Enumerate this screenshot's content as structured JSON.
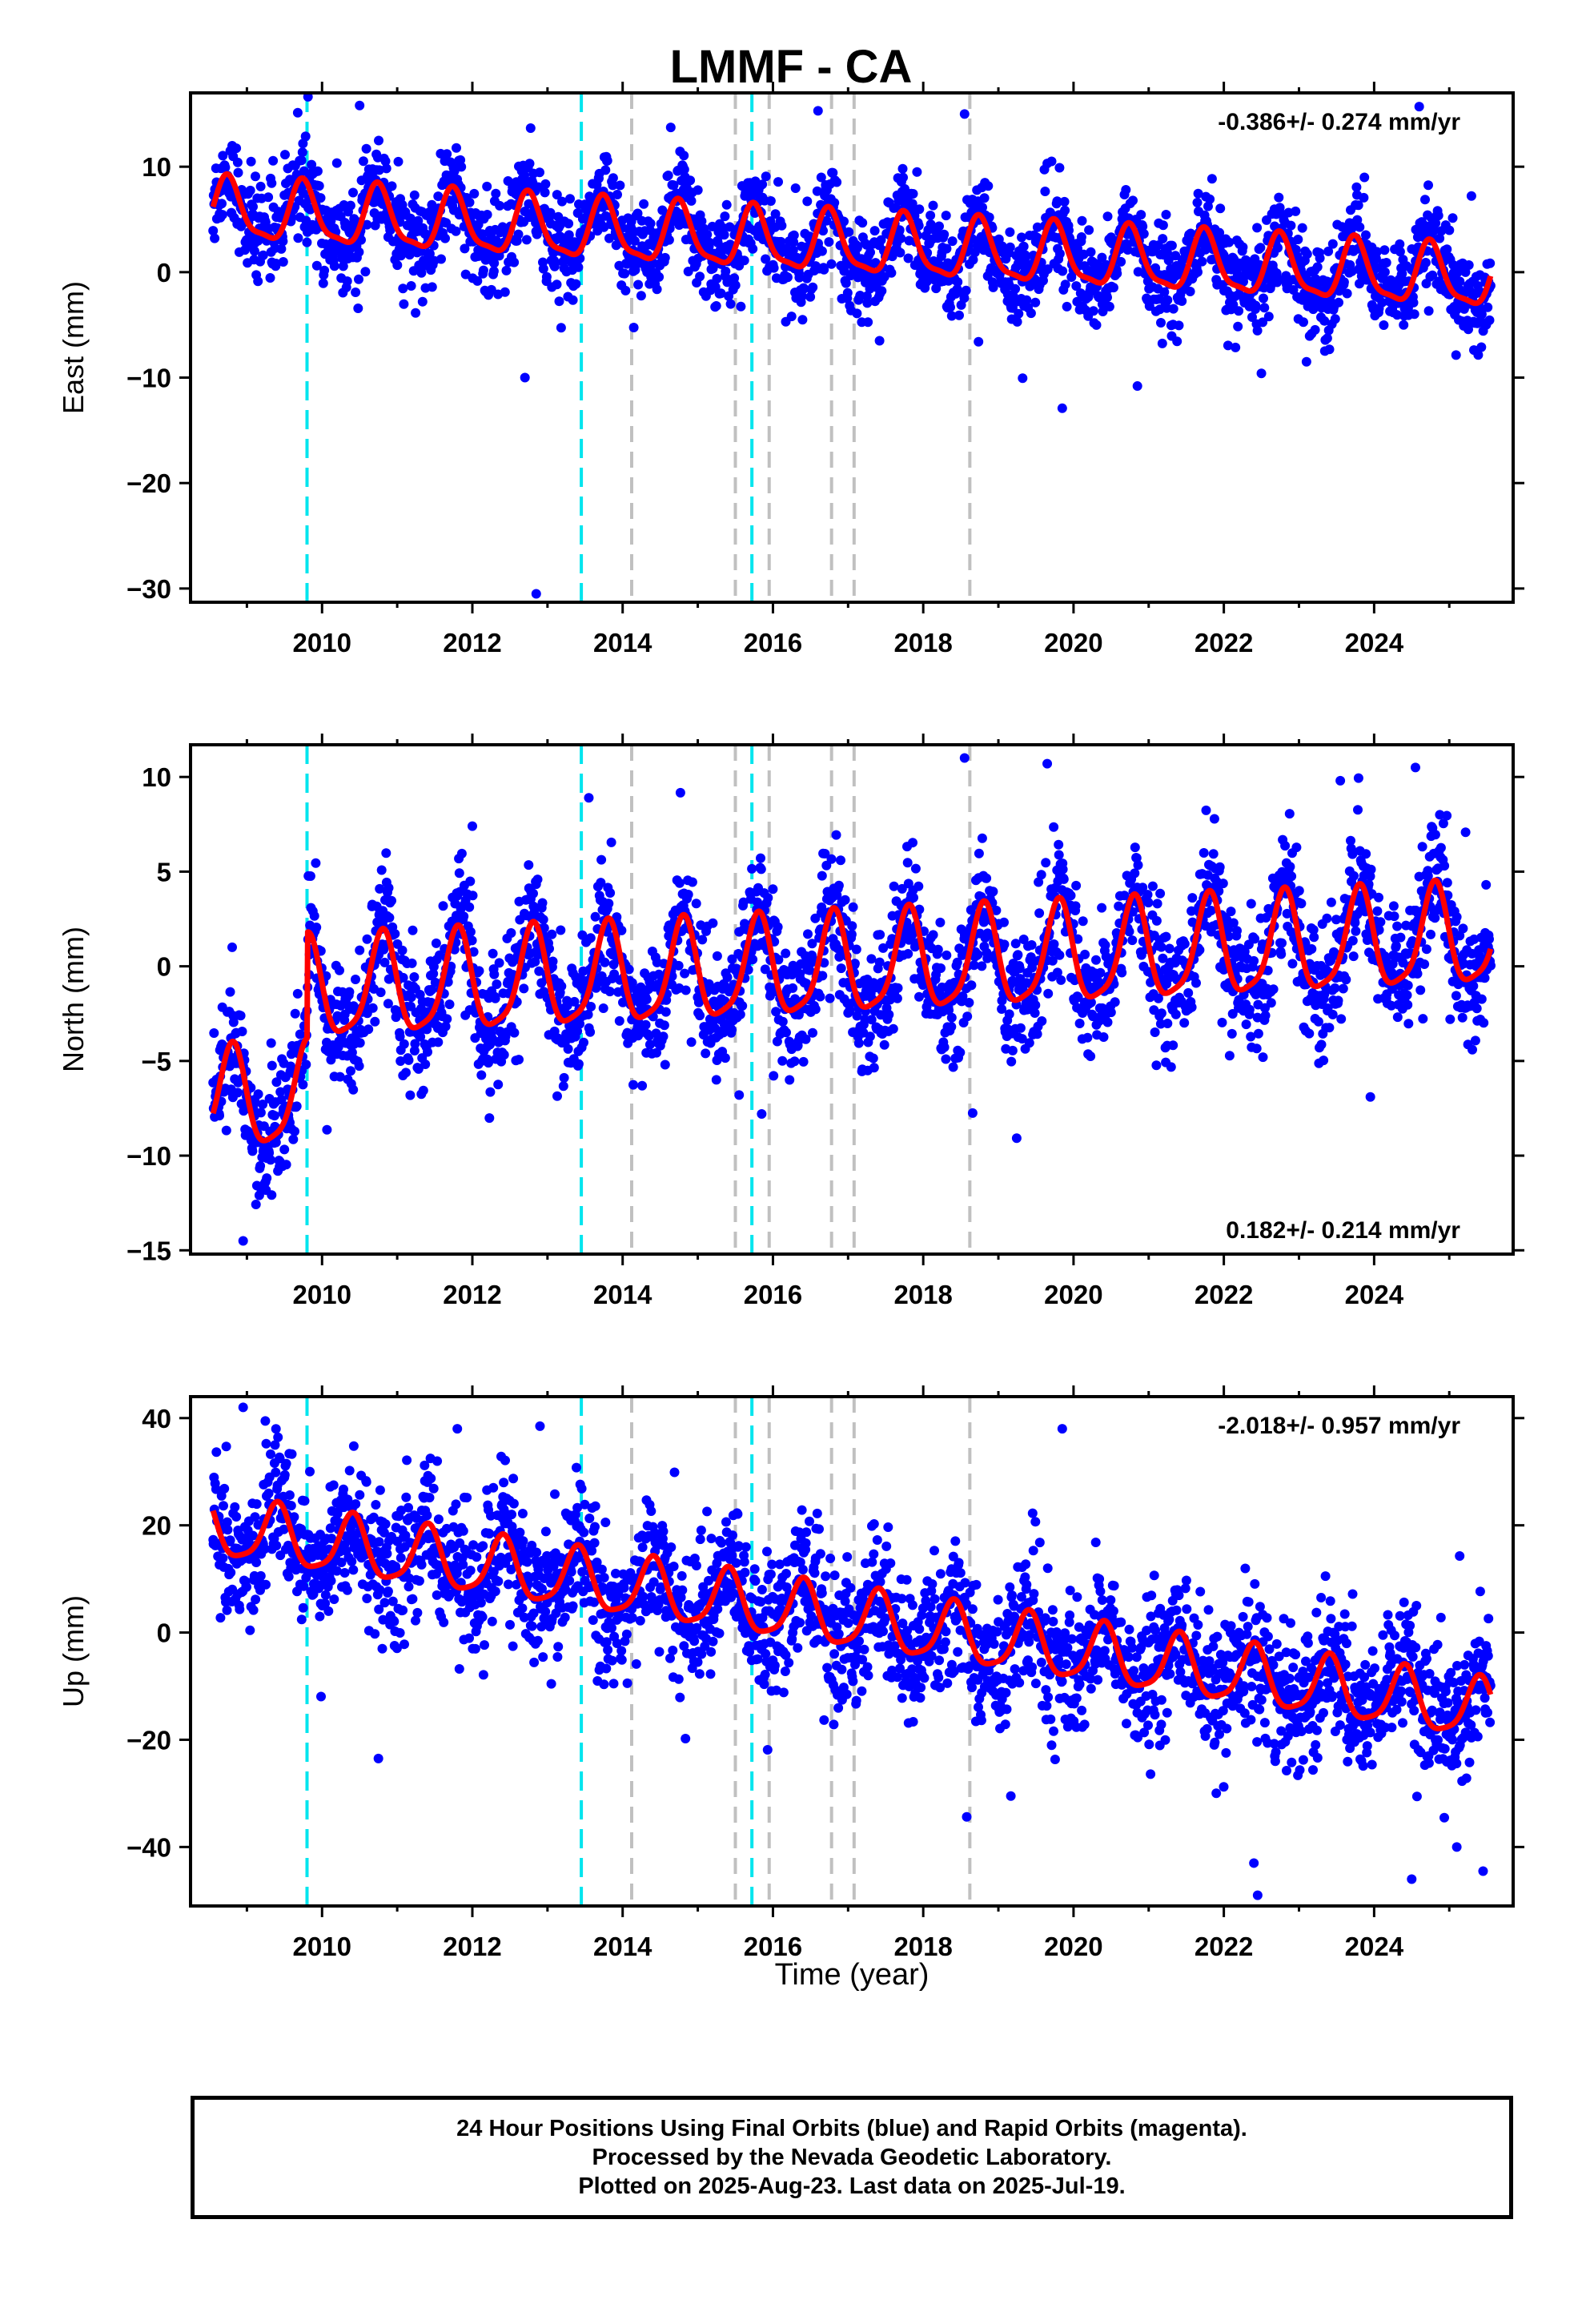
{
  "title": "LMMF - CA",
  "xlabel": "Time (year)",
  "footer": [
    "24 Hour Positions Using Final Orbits (blue) and Rapid Orbits (magenta).",
    "Processed by the Nevada Geodetic Laboratory.",
    "Plotted on 2025-Aug-23. Last data on 2025-Jul-19."
  ],
  "colors": {
    "final_orbits": "#0000ff",
    "model_fit": "#ff0000",
    "equipment_change": "#00e5ee",
    "other_event": "#c0c0c0"
  },
  "chart_data": [
    {
      "type": "scatter",
      "component": "east",
      "ylabel": "East (mm)",
      "rate_label": "-0.386+/- 0.274 mm/yr",
      "legend": "top-right",
      "xlim": [
        2008.25,
        2025.85
      ],
      "ylim": [
        -31.3,
        17
      ],
      "yticks": [
        10,
        0,
        -10,
        -20,
        -30
      ],
      "xticks": [
        2010,
        2012,
        2014,
        2016,
        2018,
        2020,
        2022,
        2024
      ],
      "fit": {
        "offset": 5.8,
        "rate": -0.386,
        "annual_amp": 2.8,
        "annual_phase": 0.5,
        "semiannual_amp": 0.8,
        "semiannual_phase": 0.1,
        "noise": 2.2
      },
      "steps": [],
      "outliers": [
        [
          2012.85,
          -30.5
        ],
        [
          2010.5,
          15.8
        ],
        [
          2024.6,
          15.7
        ],
        [
          2016.6,
          15.3
        ],
        [
          2018.55,
          15.0
        ],
        [
          2019.85,
          -12.9
        ],
        [
          2020.85,
          -10.8
        ],
        [
          2012.7,
          -10.0
        ],
        [
          2023.1,
          -8.5
        ],
        [
          2022.5,
          -9.6
        ]
      ]
    },
    {
      "type": "scatter",
      "component": "north",
      "ylabel": "North (mm)",
      "rate_label": "0.182+/- 0.214 mm/yr",
      "legend": "bottom-right",
      "xlim": [
        2008.25,
        2025.85
      ],
      "ylim": [
        -15.2,
        11.7
      ],
      "yticks": [
        10,
        5,
        0,
        -5,
        -10,
        -15
      ],
      "xticks": [
        2010,
        2012,
        2014,
        2016,
        2018,
        2020,
        2022,
        2024
      ],
      "fit": {
        "offset": -1.6,
        "rate": 0.182,
        "annual_amp": 2.6,
        "annual_phase": 0.55,
        "semiannual_amp": 0.6,
        "semiannual_phase": 0.2,
        "noise": 1.7
      },
      "steps": [
        [
          2008.5,
          2009.8,
          -5.6
        ]
      ],
      "outliers": [
        [
          2008.95,
          -14.5
        ],
        [
          2018.55,
          11.0
        ],
        [
          2019.65,
          10.7
        ],
        [
          2024.55,
          10.5
        ],
        [
          2023.55,
          9.8
        ],
        [
          2013.55,
          8.9
        ],
        [
          2015.85,
          -7.8
        ],
        [
          2023.95,
          -6.9
        ],
        [
          2015.55,
          -6.8
        ],
        [
          2012.0,
          7.4
        ]
      ]
    },
    {
      "type": "scatter",
      "component": "up",
      "ylabel": "Up (mm)",
      "rate_label": "-2.018+/- 0.957 mm/yr",
      "legend": "top-right",
      "xlim": [
        2008.25,
        2025.85
      ],
      "ylim": [
        -51,
        44
      ],
      "yticks": [
        40,
        20,
        0,
        -20,
        -40
      ],
      "xticks": [
        2010,
        2012,
        2014,
        2016,
        2018,
        2020,
        2022,
        2024
      ],
      "fit": {
        "offset": 19.5,
        "rate": -2.018,
        "annual_amp": 5.5,
        "annual_phase": 0.15,
        "semiannual_amp": 1.2,
        "semiannual_phase": 0.3,
        "noise": 6.5
      },
      "steps": [],
      "outliers": [
        [
          2008.95,
          42.0
        ],
        [
          2019.85,
          38.0
        ],
        [
          2022.45,
          -49.0
        ],
        [
          2024.5,
          -46.0
        ],
        [
          2025.45,
          -44.5
        ],
        [
          2010.75,
          -23.5
        ],
        [
          2022.4,
          -43.0
        ],
        [
          2012.9,
          38.5
        ],
        [
          2011.8,
          38.0
        ],
        [
          2025.1,
          -40.0
        ]
      ]
    }
  ],
  "event_lines": {
    "equipment_change": [
      2009.8,
      2013.45,
      2015.72
    ],
    "other_event": [
      2014.12,
      2015.5,
      2015.95,
      2016.78,
      2017.08,
      2018.62
    ]
  },
  "data_span": {
    "start": 2008.55,
    "end": 2025.55
  }
}
